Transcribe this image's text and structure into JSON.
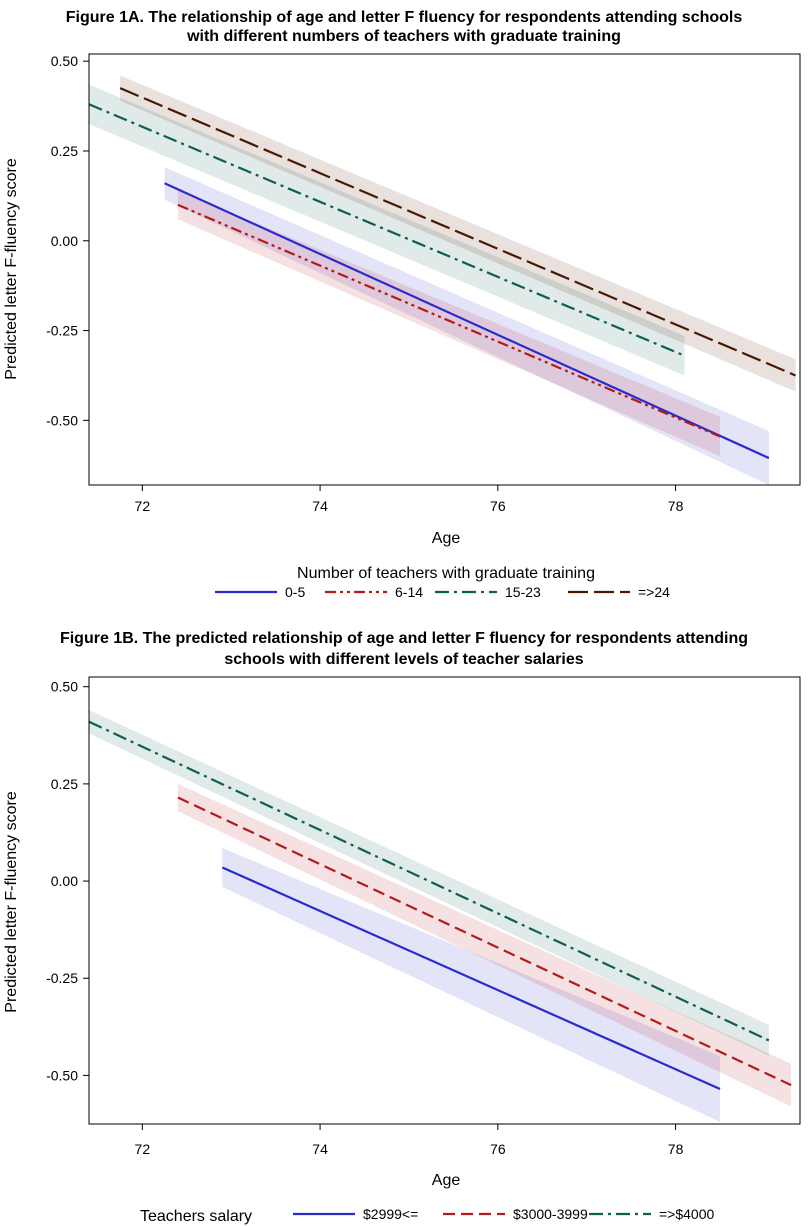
{
  "chart_data": [
    {
      "type": "line",
      "title_line1": "Figure 1A. The relationship of age and letter F fluency for respondents attending schools",
      "title_line2": "with different numbers of teachers with graduate training",
      "xlabel": "Age",
      "ylabel": "Predicted letter F-fluency score",
      "xlim": [
        71.4,
        79.4
      ],
      "ylim": [
        -0.68,
        0.52
      ],
      "xticks": [
        "72",
        "74",
        "76",
        "78"
      ],
      "yticks": [
        "0.50",
        "0.25",
        "0.00",
        "-0.25",
        "-0.50"
      ],
      "legend_title": "Number of teachers with graduate training",
      "legend_position": "bottom",
      "series": [
        {
          "name": "0-5",
          "color": "#2b2bcc",
          "dash": "solid",
          "x": [
            72.25,
            79.05
          ],
          "y": [
            0.16,
            -0.605
          ],
          "band": [
            0.045,
            0.075
          ]
        },
        {
          "name": "6-14",
          "color": "#b31b1b",
          "dash": "dash-dot-dot",
          "x": [
            72.4,
            78.5
          ],
          "y": [
            0.1,
            -0.545
          ],
          "band": [
            0.04,
            0.055
          ]
        },
        {
          "name": "15-23",
          "color": "#0e5e52",
          "dash": "dash-dot",
          "x": [
            71.4,
            78.1
          ],
          "y": [
            0.38,
            -0.32
          ],
          "band": [
            0.055,
            0.055
          ]
        },
        {
          "name": "=>24",
          "color": "#4a1a00",
          "dash": "long-dash",
          "x": [
            71.75,
            79.35
          ],
          "y": [
            0.425,
            -0.375
          ],
          "band": [
            0.035,
            0.045
          ]
        }
      ]
    },
    {
      "type": "line",
      "title_line1": "Figure 1B. The predicted relationship of age and letter F fluency for respondents attending",
      "title_line2": "schools with different levels of teacher salaries",
      "xlabel": "Age",
      "ylabel": "Predicted letter F-fluency score",
      "xlim": [
        71.4,
        79.4
      ],
      "ylim": [
        -0.625,
        0.525
      ],
      "xticks": [
        "72",
        "74",
        "76",
        "78"
      ],
      "yticks": [
        "0.50",
        "0.25",
        "0.00",
        "-0.25",
        "-0.50"
      ],
      "legend_title": "Teachers salary",
      "legend_position": "bottom",
      "series": [
        {
          "name": "$2999<=",
          "color": "#2b2bcc",
          "dash": "solid",
          "x": [
            72.9,
            78.5
          ],
          "y": [
            0.035,
            -0.535
          ],
          "band": [
            0.05,
            0.085
          ]
        },
        {
          "name": "$3000-3999",
          "color": "#b31b1b",
          "dash": "dash",
          "x": [
            72.4,
            79.3
          ],
          "y": [
            0.215,
            -0.525
          ],
          "band": [
            0.035,
            0.055
          ]
        },
        {
          "name": "=>$4000",
          "color": "#0e5e52",
          "dash": "dash-dot",
          "x": [
            71.4,
            79.05
          ],
          "y": [
            0.41,
            -0.41
          ],
          "band": [
            0.03,
            0.04
          ]
        }
      ]
    }
  ]
}
